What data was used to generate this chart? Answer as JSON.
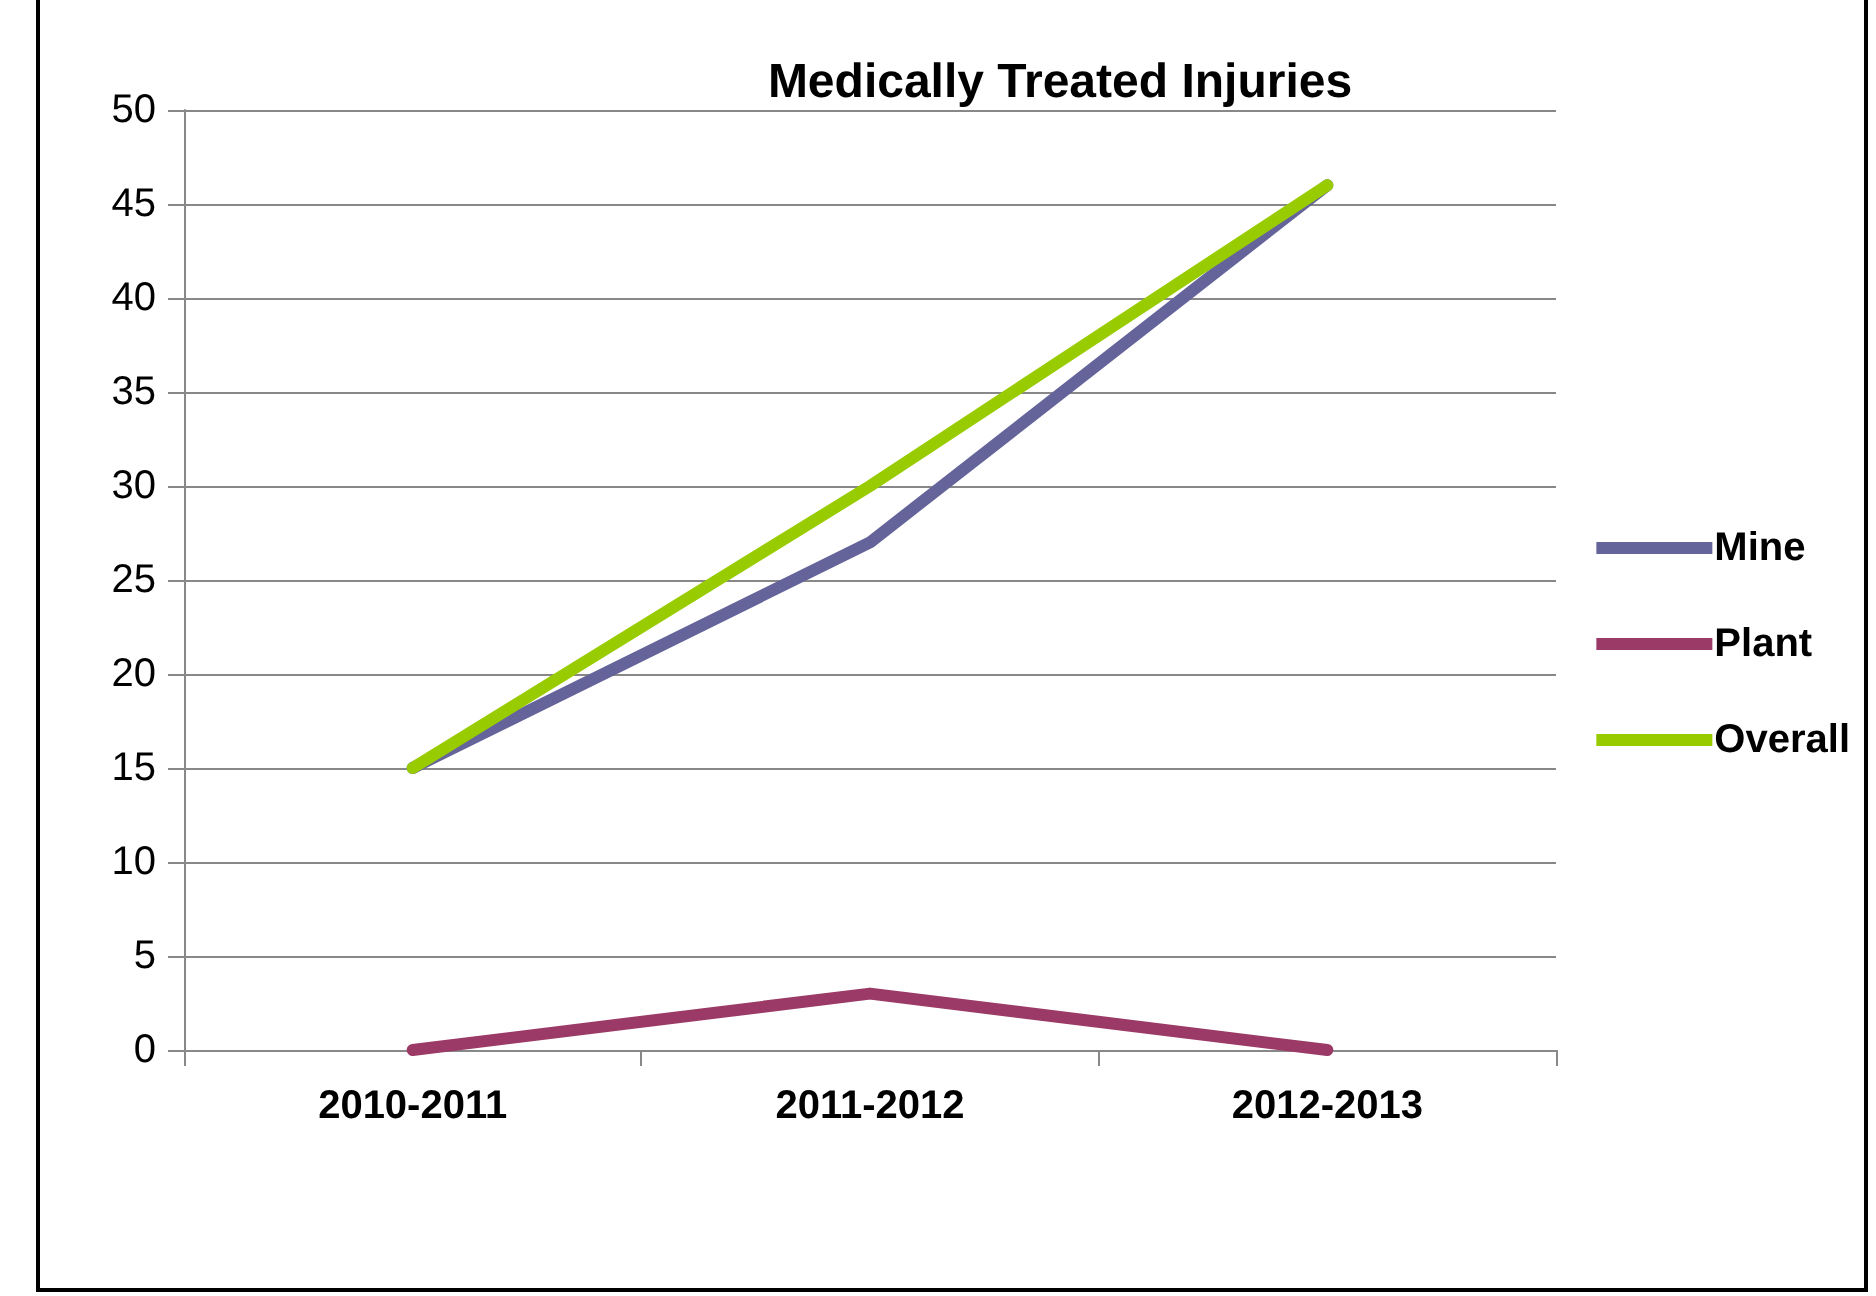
{
  "chart_data": {
    "type": "line",
    "title": "Medically Treated Injuries",
    "categories": [
      "2010-2011",
      "2011-2012",
      "2012-2013"
    ],
    "series": [
      {
        "name": "Mine",
        "color": "#64649a",
        "values": [
          15,
          27,
          46
        ]
      },
      {
        "name": "Plant",
        "color": "#9b3a66",
        "values": [
          0,
          3,
          0
        ]
      },
      {
        "name": "Overall",
        "color": "#99cc00",
        "values": [
          15,
          30,
          46
        ]
      }
    ],
    "ylim": [
      0,
      50
    ],
    "yticks": [
      0,
      5,
      10,
      15,
      20,
      25,
      30,
      35,
      40,
      45,
      50
    ],
    "grid": "y",
    "legend": "right",
    "marker": "none",
    "line_style": "solid"
  }
}
